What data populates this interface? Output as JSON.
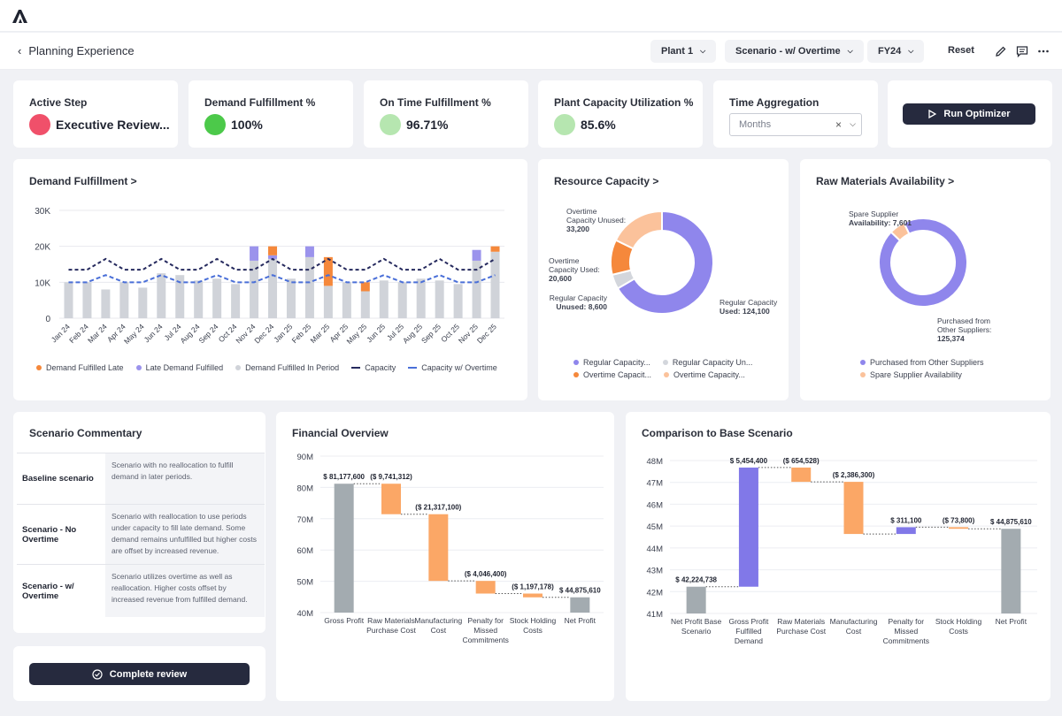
{
  "header": {
    "back_label": "Planning Experience",
    "plant": "Plant 1",
    "scenario": "Scenario - w/ Overtime",
    "year": "FY24",
    "reset_label": "Reset"
  },
  "kpis": {
    "active_step": {
      "title": "Active Step",
      "value": "Executive Review...",
      "color": "#f0506a"
    },
    "demand_fulfillment": {
      "title": "Demand Fulfillment %",
      "value": "100%",
      "color": "#4cc94a"
    },
    "on_time": {
      "title": "On Time Fulfillment %",
      "value": "96.71%",
      "color": "#b6e6b0"
    },
    "capacity_util": {
      "title": "Plant Capacity Utilization %",
      "value": "85.6%",
      "color": "#b6e6b0"
    },
    "time_aggregation": {
      "title": "Time Aggregation",
      "selected": "Months"
    },
    "run_optimizer_label": "Run Optimizer"
  },
  "demand_chart_title": "Demand Fulfillment >",
  "resource_title": "Resource Capacity >",
  "raw_title": "Raw Materials Availability >",
  "commentary": {
    "title": "Scenario Commentary",
    "rows": [
      {
        "label": "Baseline scenario",
        "text": "Scenario with no reallocation to fulfill demand in later periods."
      },
      {
        "label": "Scenario - No Overtime",
        "text": "Scenario with reallocation to use periods under capacity to fill late demand. Some demand remains unfulfilled but higher costs are offset by increased revenue."
      },
      {
        "label": "Scenario - w/ Overtime",
        "text": "Scenario utilizes overtime as well as reallocation. Higher costs offset by increased revenue from fulfilled demand."
      }
    ],
    "complete_label": "Complete review"
  },
  "financial_title": "Financial Overview",
  "comparison_title": "Comparison to Base Scenario",
  "chart_data": [
    {
      "type": "bar",
      "title": "Demand Fulfillment",
      "categories": [
        "Jan 24",
        "Feb 24",
        "Mar 24",
        "Apr 24",
        "May 24",
        "Jun 24",
        "Jul 24",
        "Aug 24",
        "Sep 24",
        "Oct 24",
        "Nov 24",
        "Dec 24",
        "Jan 25",
        "Feb 25",
        "Mar 25",
        "Apr 25",
        "May 25",
        "Jun 25",
        "Jul 25",
        "Aug 25",
        "Sep 25",
        "Oct 25",
        "Nov 25",
        "Dec 25"
      ],
      "yticks": [
        "0",
        "10K",
        "20K",
        "30K"
      ],
      "ylim": [
        0,
        30000
      ],
      "series": [
        {
          "name": "Demand Fulfilled In Period",
          "color": "#d0d3d9",
          "values": [
            10000,
            10000,
            8000,
            10000,
            8500,
            12500,
            12000,
            10500,
            11000,
            9500,
            16000,
            16500,
            11000,
            17000,
            9000,
            10000,
            7500,
            10500,
            10000,
            11000,
            10500,
            9500,
            16000,
            18500
          ]
        },
        {
          "name": "Late Demand Fulfilled",
          "color": "#9b93ec",
          "values": [
            0,
            0,
            0,
            0,
            0,
            0,
            0,
            0,
            0,
            0,
            4000,
            1000,
            0,
            3000,
            0,
            0,
            0,
            0,
            0,
            0,
            0,
            0,
            3000,
            0
          ]
        },
        {
          "name": "Demand Fulfilled Late",
          "color": "#f5883b",
          "values": [
            0,
            0,
            0,
            0,
            0,
            0,
            0,
            0,
            0,
            0,
            0,
            2500,
            0,
            0,
            8000,
            0,
            2500,
            0,
            0,
            0,
            0,
            0,
            0,
            1500
          ]
        },
        {
          "name": "Capacity",
          "color": "#262a5e",
          "values": [
            13500,
            13500,
            16500,
            13500,
            13500,
            16500,
            13500,
            13500,
            16500,
            13500,
            13500,
            16500,
            13500,
            13500,
            16500,
            13500,
            13500,
            16500,
            13500,
            13500,
            16500,
            13500,
            13500,
            16500
          ]
        },
        {
          "name": "Capacity w/ Overtime",
          "color": "#4a6fd8",
          "values": [
            10000,
            10000,
            12000,
            10000,
            10000,
            12000,
            10000,
            10000,
            12000,
            10000,
            10000,
            12000,
            10000,
            10000,
            12000,
            10000,
            10000,
            12000,
            10000,
            10000,
            12000,
            10000,
            10000,
            12000
          ]
        }
      ],
      "legend": [
        "Demand Fulfilled Late",
        "Late Demand Fulfilled",
        "Demand Fulfilled In Period",
        "Capacity",
        "Capacity w/ Overtime"
      ]
    },
    {
      "type": "pie",
      "title": "Resource Capacity",
      "slices": [
        {
          "name": "Regular Capacity Used",
          "value": 124100,
          "color": "#8f86ec",
          "label": "Regular Capacity Used: 124,100"
        },
        {
          "name": "Regular Capacity Unused",
          "value": 8600,
          "color": "#d3d6dc",
          "label": "Regular Capacity Unused: 8,600"
        },
        {
          "name": "Overtime Capacity Used",
          "value": 20600,
          "color": "#f5883b",
          "label": "Overtime Capacity Used: 20,600"
        },
        {
          "name": "Overtime Capacity Unused",
          "value": 33200,
          "color": "#fbc29b",
          "label": "Overtime Capacity Unused: 33,200"
        }
      ],
      "legend": [
        "Regular Capacity...",
        "Regular Capacity Un...",
        "Overtime Capacit...",
        "Overtime Capacity..."
      ]
    },
    {
      "type": "pie",
      "title": "Raw Materials Availability",
      "slices": [
        {
          "name": "Purchased from Other Suppliers",
          "value": 125374,
          "color": "#8f86ec",
          "label": "Purchased from Other Suppliers: 125,374"
        },
        {
          "name": "Spare Supplier Availability",
          "value": 7601,
          "color": "#fbc29b",
          "label": "Spare Supplier Availability: 7,601"
        }
      ],
      "legend": [
        "Purchased from Other Suppliers",
        "Spare Supplier Availability"
      ]
    },
    {
      "type": "waterfall",
      "title": "Financial Overview",
      "ylim": [
        40,
        90
      ],
      "yticks": [
        "40M",
        "50M",
        "60M",
        "70M",
        "80M",
        "90M"
      ],
      "categories": [
        "Gross Profit",
        "Raw Materials Purchase Cost",
        "Manufacturing Cost",
        "Penalty for Missed Commitments",
        "Stock Holding Costs",
        "Net Profit"
      ],
      "values": [
        81.1776,
        -9.741312,
        -21.3171,
        -4.0464,
        -1.197178,
        44.87561
      ],
      "labels": [
        "$ 81,177,600",
        "($ 9,741,312)",
        "($ 21,317,100)",
        "($ 4,046,400)",
        "($ 1,197,178)",
        "$ 44,875,610"
      ],
      "kinds": [
        "total",
        "delta",
        "delta",
        "delta",
        "delta",
        "total"
      ]
    },
    {
      "type": "waterfall",
      "title": "Comparison to Base Scenario",
      "ylim": [
        41,
        48
      ],
      "yticks": [
        "41M",
        "42M",
        "43M",
        "44M",
        "45M",
        "46M",
        "47M",
        "48M"
      ],
      "categories": [
        "Net Profit Base Scenario",
        "Gross Profit Fulfilled Demand",
        "Raw Materials Purchase Cost",
        "Manufacturing Cost",
        "Penalty for Missed Commitments",
        "Stock Holding Costs",
        "Net Profit"
      ],
      "values": [
        42.224738,
        5.4544,
        -0.654528,
        -2.3863,
        0.3111,
        -0.0738,
        44.87561
      ],
      "labels": [
        "$ 42,224,738",
        "$ 5,454,400",
        "($ 654,528)",
        "($ 2,386,300)",
        "$ 311,100",
        "($ 73,800)",
        "$ 44,875,610"
      ],
      "kinds": [
        "total",
        "delta",
        "delta",
        "delta",
        "delta",
        "delta",
        "total"
      ]
    }
  ]
}
